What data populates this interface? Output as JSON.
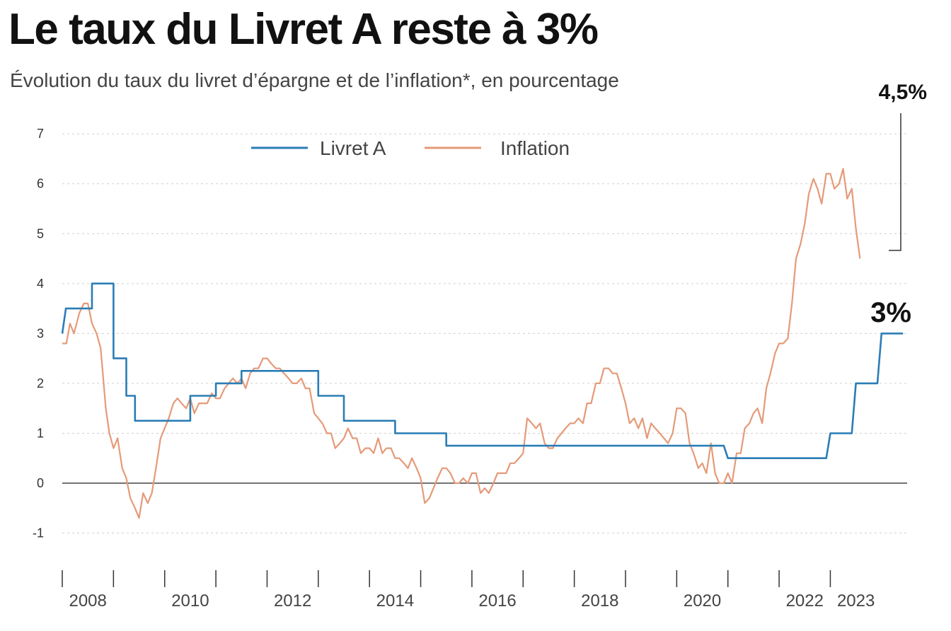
{
  "title": "Le taux du Livret A reste à 3%",
  "subtitle": "Évolution du taux du livret d’épargne et de l’inflation*, en pourcentage",
  "colors": {
    "livret": "#2a7db5",
    "inflation": "#e59a78",
    "grid": "#cfcfcf",
    "zero": "#444444"
  },
  "chart_data": {
    "type": "line",
    "xlim": [
      2007.0,
      2023.5
    ],
    "ylim": [
      -1.8,
      7.3
    ],
    "y_ticks": [
      "-1",
      "0",
      "1",
      "2",
      "3",
      "4",
      "5",
      "6",
      "7"
    ],
    "y_tick_values": [
      -1,
      0,
      1,
      2,
      3,
      4,
      5,
      6,
      7
    ],
    "grid": "horizontal dotted",
    "x_ticks": [
      2007,
      2008,
      2009,
      2010,
      2011,
      2012,
      2013,
      2014,
      2015,
      2016,
      2017,
      2018,
      2019,
      2020,
      2021,
      2022
    ],
    "x_labels": [
      "2008",
      "2010",
      "2012",
      "2014",
      "2016",
      "2018",
      "2020",
      "2022",
      "2023"
    ],
    "x_label_positions": [
      2007.5,
      2009.5,
      2011.5,
      2013.5,
      2015.5,
      2017.5,
      2019.5,
      2021.5,
      2022.5
    ],
    "legend": [
      "Livret A",
      "Inflation"
    ],
    "legend_position": "top-center",
    "annotations": {
      "inflation_last": "4,5%",
      "livret_last": "3%"
    },
    "series": [
      {
        "name": "Livret A",
        "points": [
          [
            2007.0,
            3.0
          ],
          [
            2007.07,
            3.5
          ],
          [
            2007.58,
            3.5
          ],
          [
            2007.58,
            4.0
          ],
          [
            2008.0,
            4.0
          ],
          [
            2008.0,
            2.5
          ],
          [
            2008.25,
            2.5
          ],
          [
            2008.25,
            1.75
          ],
          [
            2008.42,
            1.75
          ],
          [
            2008.42,
            1.25
          ],
          [
            2009.5,
            1.25
          ],
          [
            2009.5,
            1.75
          ],
          [
            2010.0,
            1.75
          ],
          [
            2010.0,
            2.0
          ],
          [
            2010.5,
            2.0
          ],
          [
            2010.5,
            2.25
          ],
          [
            2012.0,
            2.25
          ],
          [
            2012.0,
            1.75
          ],
          [
            2012.5,
            1.75
          ],
          [
            2012.5,
            1.25
          ],
          [
            2013.5,
            1.25
          ],
          [
            2013.5,
            1.0
          ],
          [
            2014.5,
            1.0
          ],
          [
            2014.5,
            0.75
          ],
          [
            2019.92,
            0.75
          ],
          [
            2020.0,
            0.5
          ],
          [
            2021.92,
            0.5
          ],
          [
            2022.0,
            1.0
          ],
          [
            2022.42,
            1.0
          ],
          [
            2022.5,
            2.0
          ],
          [
            2022.92,
            2.0
          ],
          [
            2023.0,
            3.0
          ],
          [
            2023.42,
            3.0
          ]
        ]
      },
      {
        "name": "Inflation",
        "points": [
          [
            2007.0,
            2.8
          ],
          [
            2007.08,
            2.8
          ],
          [
            2007.15,
            3.2
          ],
          [
            2007.23,
            3.0
          ],
          [
            2007.33,
            3.4
          ],
          [
            2007.42,
            3.6
          ],
          [
            2007.5,
            3.6
          ],
          [
            2007.58,
            3.2
          ],
          [
            2007.67,
            3.0
          ],
          [
            2007.75,
            2.7
          ],
          [
            2007.85,
            1.5
          ],
          [
            2007.92,
            1.0
          ],
          [
            2008.0,
            0.7
          ],
          [
            2008.08,
            0.9
          ],
          [
            2008.17,
            0.3
          ],
          [
            2008.25,
            0.1
          ],
          [
            2008.33,
            -0.3
          ],
          [
            2008.42,
            -0.5
          ],
          [
            2008.5,
            -0.7
          ],
          [
            2008.58,
            -0.2
          ],
          [
            2008.67,
            -0.4
          ],
          [
            2008.75,
            -0.2
          ],
          [
            2008.83,
            0.3
          ],
          [
            2008.92,
            0.9
          ],
          [
            2009.0,
            1.1
          ],
          [
            2009.08,
            1.3
          ],
          [
            2009.17,
            1.6
          ],
          [
            2009.25,
            1.7
          ],
          [
            2009.33,
            1.6
          ],
          [
            2009.42,
            1.5
          ],
          [
            2009.5,
            1.7
          ],
          [
            2009.58,
            1.4
          ],
          [
            2009.67,
            1.6
          ],
          [
            2009.75,
            1.6
          ],
          [
            2009.83,
            1.6
          ],
          [
            2009.92,
            1.8
          ],
          [
            2010.0,
            1.7
          ],
          [
            2010.08,
            1.7
          ],
          [
            2010.17,
            1.9
          ],
          [
            2010.25,
            2.0
          ],
          [
            2010.33,
            2.1
          ],
          [
            2010.42,
            2.0
          ],
          [
            2010.5,
            2.1
          ],
          [
            2010.58,
            1.9
          ],
          [
            2010.67,
            2.2
          ],
          [
            2010.75,
            2.3
          ],
          [
            2010.83,
            2.3
          ],
          [
            2010.92,
            2.5
          ],
          [
            2011.0,
            2.5
          ],
          [
            2011.08,
            2.4
          ],
          [
            2011.17,
            2.3
          ],
          [
            2011.25,
            2.3
          ],
          [
            2011.33,
            2.2
          ],
          [
            2011.42,
            2.1
          ],
          [
            2011.5,
            2.0
          ],
          [
            2011.58,
            2.0
          ],
          [
            2011.67,
            2.1
          ],
          [
            2011.75,
            1.9
          ],
          [
            2011.83,
            1.9
          ],
          [
            2011.92,
            1.4
          ],
          [
            2012.0,
            1.3
          ],
          [
            2012.08,
            1.2
          ],
          [
            2012.17,
            1.0
          ],
          [
            2012.25,
            1.0
          ],
          [
            2012.33,
            0.7
          ],
          [
            2012.42,
            0.8
          ],
          [
            2012.5,
            0.9
          ],
          [
            2012.58,
            1.1
          ],
          [
            2012.67,
            0.9
          ],
          [
            2012.75,
            0.9
          ],
          [
            2012.83,
            0.6
          ],
          [
            2012.92,
            0.7
          ],
          [
            2013.0,
            0.7
          ],
          [
            2013.08,
            0.6
          ],
          [
            2013.17,
            0.9
          ],
          [
            2013.25,
            0.6
          ],
          [
            2013.33,
            0.7
          ],
          [
            2013.42,
            0.7
          ],
          [
            2013.5,
            0.5
          ],
          [
            2013.58,
            0.5
          ],
          [
            2013.67,
            0.4
          ],
          [
            2013.75,
            0.3
          ],
          [
            2013.83,
            0.5
          ],
          [
            2013.92,
            0.3
          ],
          [
            2014.0,
            0.1
          ],
          [
            2014.08,
            -0.4
          ],
          [
            2014.17,
            -0.3
          ],
          [
            2014.25,
            -0.1
          ],
          [
            2014.33,
            0.1
          ],
          [
            2014.42,
            0.3
          ],
          [
            2014.5,
            0.3
          ],
          [
            2014.58,
            0.2
          ],
          [
            2014.67,
            0.0
          ],
          [
            2014.75,
            0.0
          ],
          [
            2014.83,
            0.1
          ],
          [
            2014.92,
            0.0
          ],
          [
            2015.0,
            0.2
          ],
          [
            2015.08,
            0.2
          ],
          [
            2015.17,
            -0.2
          ],
          [
            2015.25,
            -0.1
          ],
          [
            2015.33,
            -0.2
          ],
          [
            2015.42,
            0.0
          ],
          [
            2015.5,
            0.2
          ],
          [
            2015.58,
            0.2
          ],
          [
            2015.67,
            0.2
          ],
          [
            2015.75,
            0.4
          ],
          [
            2015.83,
            0.4
          ],
          [
            2015.92,
            0.5
          ],
          [
            2016.0,
            0.6
          ],
          [
            2016.08,
            1.3
          ],
          [
            2016.17,
            1.2
          ],
          [
            2016.25,
            1.1
          ],
          [
            2016.33,
            1.2
          ],
          [
            2016.42,
            0.8
          ],
          [
            2016.5,
            0.7
          ],
          [
            2016.58,
            0.7
          ],
          [
            2016.67,
            0.9
          ],
          [
            2016.75,
            1.0
          ],
          [
            2016.83,
            1.1
          ],
          [
            2016.92,
            1.2
          ],
          [
            2017.0,
            1.2
          ],
          [
            2017.08,
            1.3
          ],
          [
            2017.17,
            1.2
          ],
          [
            2017.25,
            1.6
          ],
          [
            2017.33,
            1.6
          ],
          [
            2017.42,
            2.0
          ],
          [
            2017.5,
            2.0
          ],
          [
            2017.58,
            2.3
          ],
          [
            2017.67,
            2.3
          ],
          [
            2017.75,
            2.2
          ],
          [
            2017.83,
            2.2
          ],
          [
            2017.92,
            1.9
          ],
          [
            2018.0,
            1.6
          ],
          [
            2018.08,
            1.2
          ],
          [
            2018.17,
            1.3
          ],
          [
            2018.25,
            1.1
          ],
          [
            2018.33,
            1.3
          ],
          [
            2018.42,
            0.9
          ],
          [
            2018.5,
            1.2
          ],
          [
            2018.58,
            1.1
          ],
          [
            2018.67,
            1.0
          ],
          [
            2018.75,
            0.9
          ],
          [
            2018.83,
            0.8
          ],
          [
            2018.92,
            1.0
          ],
          [
            2019.0,
            1.5
          ],
          [
            2019.08,
            1.5
          ],
          [
            2019.17,
            1.4
          ],
          [
            2019.25,
            0.8
          ],
          [
            2019.33,
            0.6
          ],
          [
            2019.42,
            0.3
          ],
          [
            2019.5,
            0.4
          ],
          [
            2019.58,
            0.2
          ],
          [
            2019.67,
            0.8
          ],
          [
            2019.75,
            0.2
          ],
          [
            2019.83,
            0.0
          ],
          [
            2019.92,
            0.0
          ],
          [
            2020.0,
            0.2
          ],
          [
            2020.08,
            0.0
          ],
          [
            2020.17,
            0.6
          ],
          [
            2020.25,
            0.6
          ],
          [
            2020.33,
            1.1
          ],
          [
            2020.42,
            1.2
          ],
          [
            2020.5,
            1.4
          ],
          [
            2020.58,
            1.5
          ],
          [
            2020.67,
            1.2
          ],
          [
            2020.75,
            1.9
          ],
          [
            2020.83,
            2.2
          ],
          [
            2020.92,
            2.6
          ],
          [
            2021.0,
            2.8
          ],
          [
            2021.08,
            2.8
          ],
          [
            2021.17,
            2.9
          ],
          [
            2021.25,
            3.6
          ],
          [
            2021.33,
            4.5
          ],
          [
            2021.42,
            4.8
          ],
          [
            2021.5,
            5.2
          ],
          [
            2021.58,
            5.8
          ],
          [
            2021.67,
            6.1
          ],
          [
            2021.75,
            5.9
          ],
          [
            2021.83,
            5.6
          ],
          [
            2021.92,
            6.2
          ],
          [
            2022.0,
            6.2
          ],
          [
            2022.08,
            5.9
          ],
          [
            2022.17,
            6.0
          ],
          [
            2022.25,
            6.3
          ],
          [
            2022.33,
            5.7
          ],
          [
            2022.42,
            5.9
          ],
          [
            2022.5,
            5.1
          ],
          [
            2022.58,
            4.5
          ]
        ]
      }
    ]
  }
}
